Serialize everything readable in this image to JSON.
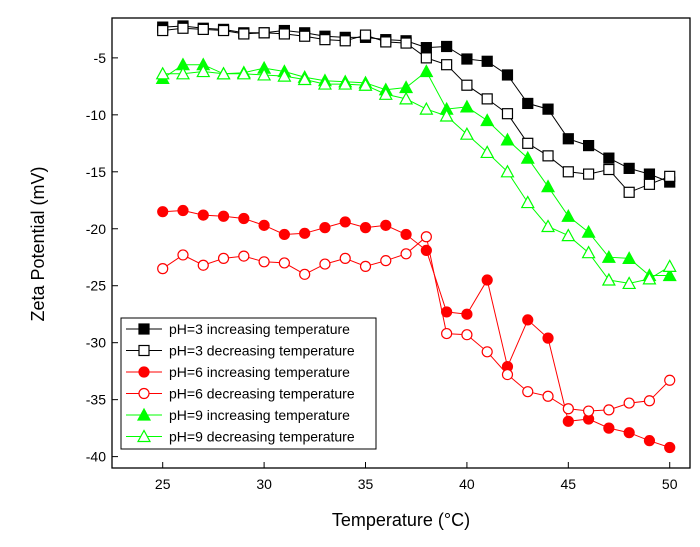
{
  "chart_data": {
    "type": "line",
    "title": "",
    "xlabel": "Temperature (°C)",
    "ylabel": "Zeta Potential (mV)",
    "xlim": [
      22.5,
      51
    ],
    "ylim": [
      -41,
      -1.5
    ],
    "xticks": [
      25,
      30,
      35,
      40,
      45,
      50
    ],
    "yticks": [
      -5,
      -10,
      -15,
      -20,
      -25,
      -30,
      -35,
      -40
    ],
    "grid": false,
    "legend_position": "lower-left",
    "x": [
      25,
      26,
      27,
      28,
      29,
      30,
      31,
      32,
      33,
      34,
      35,
      36,
      37,
      38,
      39,
      40,
      41,
      42,
      43,
      44,
      45,
      46,
      47,
      48,
      49,
      50
    ],
    "series": [
      {
        "name": "pH=3 increasing temperature",
        "color": "#000000",
        "marker": "square",
        "filled": true,
        "values": [
          -2.3,
          -2.2,
          -2.4,
          -2.5,
          -2.8,
          -2.8,
          -2.6,
          -2.8,
          -3.1,
          -3.2,
          -3.2,
          -3.4,
          -3.5,
          -4.1,
          -4.0,
          -5.1,
          -5.3,
          -6.5,
          -9.0,
          -9.5,
          -12.1,
          -12.7,
          -13.8,
          -14.7,
          -15.2,
          -15.9
        ]
      },
      {
        "name": "pH=3 decreasing temperature",
        "color": "#000000",
        "marker": "square",
        "filled": false,
        "values": [
          -2.6,
          -2.4,
          -2.5,
          -2.6,
          -2.9,
          -2.8,
          -2.9,
          -3.1,
          -3.4,
          -3.5,
          -3.0,
          -3.6,
          -3.7,
          -5.0,
          -5.6,
          -7.4,
          -8.6,
          -9.9,
          -12.5,
          -13.6,
          -15.0,
          -15.2,
          -14.8,
          -16.8,
          -16.1,
          -15.4
        ]
      },
      {
        "name": "pH=6 increasing temperature",
        "color": "#ff0000",
        "marker": "circle",
        "filled": true,
        "values": [
          -18.5,
          -18.4,
          -18.8,
          -18.9,
          -19.1,
          -19.7,
          -20.5,
          -20.4,
          -19.9,
          -19.4,
          -19.9,
          -19.7,
          -20.5,
          -21.9,
          -27.3,
          -27.5,
          -24.5,
          -32.1,
          -28.0,
          -29.6,
          -36.9,
          -36.7,
          -37.5,
          -37.9,
          -38.6,
          -39.2
        ]
      },
      {
        "name": "pH=6 decreasing temperature",
        "color": "#ff0000",
        "marker": "circle",
        "filled": false,
        "values": [
          -23.5,
          -22.3,
          -23.2,
          -22.6,
          -22.4,
          -22.9,
          -23.0,
          -24.0,
          -23.1,
          -22.6,
          -23.3,
          -22.8,
          -22.2,
          -20.7,
          -29.2,
          -29.3,
          -30.8,
          -32.8,
          -34.3,
          -34.7,
          -35.8,
          -36.0,
          -35.9,
          -35.3,
          -35.1,
          -33.3
        ]
      },
      {
        "name": "pH=9 increasing temperature",
        "color": "#00ff00",
        "marker": "triangle",
        "filled": true,
        "values": [
          -6.8,
          -5.6,
          -5.6,
          -6.4,
          -6.3,
          -5.9,
          -6.2,
          -6.7,
          -7.0,
          -7.1,
          -7.2,
          -7.8,
          -7.6,
          -6.2,
          -9.5,
          -9.3,
          -10.5,
          -12.2,
          -13.8,
          -16.3,
          -18.9,
          -20.3,
          -22.5,
          -22.6,
          -24.1,
          -24.1
        ]
      },
      {
        "name": "pH=9 decreasing temperature",
        "color": "#00ff00",
        "marker": "triangle",
        "filled": false,
        "values": [
          -6.4,
          -6.4,
          -6.2,
          -6.4,
          -6.4,
          -6.5,
          -6.6,
          -6.9,
          -7.3,
          -7.3,
          -7.4,
          -8.2,
          -8.6,
          -9.5,
          -10.1,
          -11.7,
          -13.3,
          -15.0,
          -17.7,
          -19.8,
          -20.6,
          -22.1,
          -24.5,
          -24.8,
          -24.4,
          -23.3
        ]
      }
    ]
  }
}
